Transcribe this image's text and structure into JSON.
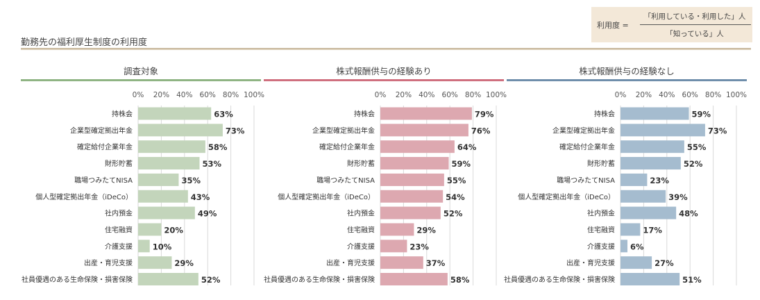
{
  "page_title": "勤務先の福利厚生制度の利用度",
  "formula": {
    "lhs": "利用度 =",
    "numerator": "「利用している・利用した」人",
    "denominator": "「知っている」人"
  },
  "colors": {
    "panel1_bar": "#c3d5bb",
    "panel1_rule": "#8fb483",
    "panel2_bar": "#dda8b0",
    "panel2_rule": "#cf6f7e",
    "panel3_bar": "#a5bccf",
    "panel3_rule": "#6f8eab"
  },
  "chart_data": [
    {
      "type": "bar",
      "orientation": "horizontal",
      "title": "調査対象",
      "x_ticks": [
        "0%",
        "20%",
        "40%",
        "60%",
        "80%",
        "100%"
      ],
      "xlim": [
        0,
        100
      ],
      "categories": [
        "持株会",
        "企業型確定拠出年金",
        "確定給付企業年金",
        "財形貯蓄",
        "職場つみたてNISA",
        "個人型確定拠出年金（iDeCo）",
        "社内預金",
        "住宅融資",
        "介護支援",
        "出産・育児支援",
        "社員優遇のある生命保険・損害保険"
      ],
      "values": [
        63,
        73,
        58,
        53,
        35,
        43,
        49,
        20,
        10,
        29,
        52
      ],
      "labels": [
        "63%",
        "73%",
        "58%",
        "53%",
        "35%",
        "43%",
        "49%",
        "20%",
        "10%",
        "29%",
        "52%"
      ]
    },
    {
      "type": "bar",
      "orientation": "horizontal",
      "title": "株式報酬供与の経験あり",
      "x_ticks": [
        "0%",
        "20%",
        "40%",
        "60%",
        "80%",
        "100%"
      ],
      "xlim": [
        0,
        100
      ],
      "categories": [
        "持株会",
        "企業型確定拠出年金",
        "確定給付企業年金",
        "財形貯蓄",
        "職場つみたてNISA",
        "個人型確定拠出年金（iDeCo）",
        "社内預金",
        "住宅融資",
        "介護支援",
        "出産・育児支援",
        "社員優遇のある生命保険・損害保険"
      ],
      "values": [
        79,
        76,
        64,
        59,
        55,
        54,
        52,
        29,
        23,
        37,
        58
      ],
      "labels": [
        "79%",
        "76%",
        "64%",
        "59%",
        "55%",
        "54%",
        "52%",
        "29%",
        "23%",
        "37%",
        "58%"
      ]
    },
    {
      "type": "bar",
      "orientation": "horizontal",
      "title": "株式報酬供与の経験なし",
      "x_ticks": [
        "0%",
        "20%",
        "40%",
        "60%",
        "80%",
        "100%"
      ],
      "xlim": [
        0,
        100
      ],
      "categories": [
        "持株会",
        "企業型確定拠出年金",
        "確定給付企業年金",
        "財形貯蓄",
        "職場つみたてNISA",
        "個人型確定拠出年金（iDeCo）",
        "社内預金",
        "住宅融資",
        "介護支援",
        "出産・育児支援",
        "社員優遇のある生命保険・損害保険"
      ],
      "values": [
        59,
        73,
        55,
        52,
        23,
        39,
        48,
        17,
        6,
        27,
        51
      ],
      "labels": [
        "59%",
        "73%",
        "55%",
        "52%",
        "23%",
        "39%",
        "48%",
        "17%",
        "6%",
        "27%",
        "51%"
      ]
    }
  ]
}
